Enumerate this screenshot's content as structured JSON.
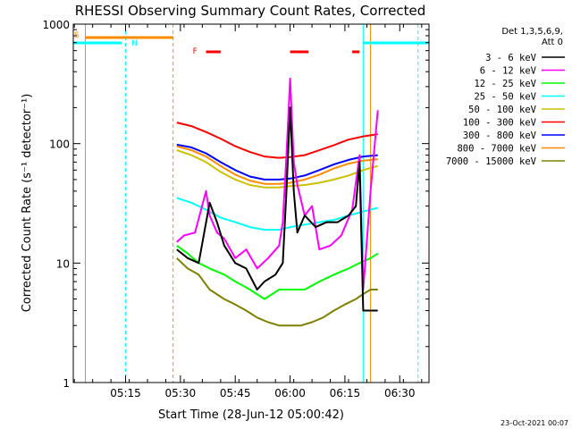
{
  "chart_data": {
    "type": "line",
    "title": "RHESSI Observing Summary Count Rates, Corrected",
    "xlabel": "Start Time (28-Jun-12 05:00:42)",
    "ylabel": "Corrected Count Rate (s⁻¹ detector⁻¹)",
    "y_scale": "log",
    "ylim": [
      1,
      1000
    ],
    "xlim": [
      "05:00:42",
      "06:38:00"
    ],
    "x_ticks": [
      "05:15",
      "05:30",
      "05:45",
      "06:00",
      "06:15",
      "06:30"
    ],
    "y_ticks": [
      "1",
      "10",
      "100",
      "1000"
    ],
    "legend_header": [
      "Det 1,3,5,6,9,",
      "Att 0"
    ],
    "legend_position": "right",
    "timestamp": "23-Oct-2021 00:07",
    "flag_labels": {
      "s": "S",
      "n": "N",
      "f": "F"
    },
    "series": [
      {
        "name": "3 - 6 keV",
        "color": "#000000",
        "x": [
          "05:29",
          "05:32",
          "05:35",
          "05:38",
          "05:40",
          "05:42",
          "05:45",
          "05:48",
          "05:51",
          "05:53",
          "05:56",
          "05:58",
          "05:59",
          "06:00",
          "06:01",
          "06:02",
          "06:04",
          "06:07",
          "06:10",
          "06:13",
          "06:16",
          "06:18",
          "06:19",
          "06:20",
          "06:21",
          "06:24"
        ],
        "y": [
          13,
          11,
          10,
          32,
          22,
          14,
          10,
          9,
          6,
          7,
          8,
          10,
          40,
          200,
          40,
          18,
          25,
          20,
          22,
          22,
          25,
          30,
          70,
          4,
          4,
          4
        ]
      },
      {
        "name": "6 - 12 keV",
        "color": "#ff00ff",
        "x": [
          "05:29",
          "05:31",
          "05:34",
          "05:37",
          "05:38",
          "05:40",
          "05:42",
          "05:45",
          "05:48",
          "05:51",
          "05:54",
          "05:57",
          "05:58",
          "05:59",
          "06:00",
          "06:01",
          "06:02",
          "06:04",
          "06:06",
          "06:08",
          "06:11",
          "06:14",
          "06:17",
          "06:19",
          "06:20",
          "06:22",
          "06:24"
        ],
        "y": [
          15,
          17,
          18,
          40,
          25,
          18,
          16,
          11,
          13,
          9,
          11,
          14,
          22,
          80,
          350,
          70,
          45,
          25,
          30,
          13,
          14,
          17,
          28,
          80,
          6,
          40,
          190
        ]
      },
      {
        "name": "12 - 25 keV",
        "color": "#00ff00",
        "x": [
          "05:29",
          "05:32",
          "05:35",
          "05:38",
          "05:42",
          "05:45",
          "05:49",
          "05:53",
          "05:57",
          "06:00",
          "06:04",
          "06:08",
          "06:12",
          "06:16",
          "06:19",
          "06:22",
          "06:24"
        ],
        "y": [
          14,
          12,
          10,
          9,
          8,
          7,
          6,
          5,
          6,
          6,
          6,
          7,
          8,
          9,
          10,
          11,
          12
        ]
      },
      {
        "name": "25 - 50 keV",
        "color": "#00ffff",
        "x": [
          "05:29",
          "05:33",
          "05:37",
          "05:41",
          "05:45",
          "05:49",
          "05:53",
          "05:57",
          "06:00",
          "06:04",
          "06:08",
          "06:12",
          "06:16",
          "06:20",
          "06:24"
        ],
        "y": [
          35,
          32,
          28,
          24,
          22,
          20,
          19,
          19,
          20,
          21,
          22,
          23,
          25,
          27,
          29
        ]
      },
      {
        "name": "50 - 100 keV",
        "color": "#ccc000",
        "x": [
          "05:29",
          "05:33",
          "05:37",
          "05:41",
          "05:45",
          "05:49",
          "05:53",
          "05:57",
          "06:00",
          "06:04",
          "06:08",
          "06:12",
          "06:16",
          "06:20",
          "06:24"
        ],
        "y": [
          88,
          80,
          70,
          58,
          50,
          45,
          43,
          43,
          44,
          45,
          47,
          50,
          54,
          60,
          65
        ]
      },
      {
        "name": "100 - 300 keV",
        "color": "#ff0000",
        "x": [
          "05:29",
          "05:33",
          "05:37",
          "05:41",
          "05:45",
          "05:49",
          "05:53",
          "05:57",
          "06:00",
          "06:04",
          "06:08",
          "06:12",
          "06:16",
          "06:20",
          "06:24"
        ],
        "y": [
          150,
          140,
          125,
          110,
          95,
          85,
          78,
          76,
          77,
          80,
          88,
          97,
          108,
          115,
          120
        ]
      },
      {
        "name": "300 - 800 keV",
        "color": "#0000ff",
        "x": [
          "05:29",
          "05:33",
          "05:37",
          "05:41",
          "05:45",
          "05:49",
          "05:53",
          "05:57",
          "06:00",
          "06:04",
          "06:08",
          "06:12",
          "06:16",
          "06:20",
          "06:24"
        ],
        "y": [
          98,
          93,
          83,
          70,
          60,
          53,
          50,
          50,
          51,
          54,
          60,
          67,
          73,
          78,
          80
        ]
      },
      {
        "name": "800 - 7000 keV",
        "color": "#ff8c00",
        "x": [
          "05:29",
          "05:33",
          "05:37",
          "05:41",
          "05:45",
          "05:49",
          "05:53",
          "05:57",
          "06:00",
          "06:04",
          "06:08",
          "06:12",
          "06:16",
          "06:20",
          "06:24"
        ],
        "y": [
          95,
          88,
          78,
          65,
          55,
          49,
          46,
          46,
          47,
          50,
          55,
          62,
          68,
          72,
          74
        ]
      },
      {
        "name": "7000 - 15000 keV",
        "color": "#808000",
        "x": [
          "05:29",
          "05:32",
          "05:35",
          "05:38",
          "05:42",
          "05:45",
          "05:48",
          "05:51",
          "05:54",
          "05:57",
          "06:00",
          "06:03",
          "06:06",
          "06:09",
          "06:12",
          "06:15",
          "06:18",
          "06:20",
          "06:22",
          "06:24"
        ],
        "y": [
          11,
          9,
          8,
          6,
          5,
          4.5,
          4,
          3.5,
          3.2,
          3,
          3,
          3,
          3.2,
          3.5,
          4,
          4.5,
          5,
          5.5,
          6,
          6
        ]
      }
    ]
  }
}
